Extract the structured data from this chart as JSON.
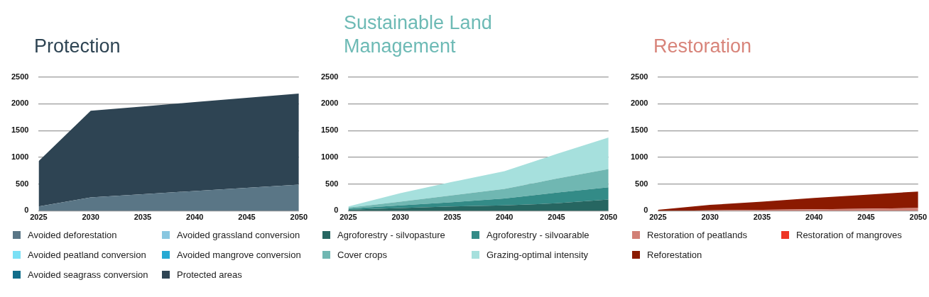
{
  "chart_data": [
    {
      "type": "area",
      "title": "Protection",
      "stacked": true,
      "x": [
        2025,
        2030,
        2035,
        2040,
        2045,
        2050
      ],
      "xlim": [
        2025,
        2050
      ],
      "xticks": [
        2025,
        2030,
        2035,
        2040,
        2045,
        2050
      ],
      "ylim": [
        0,
        2500
      ],
      "yticks": [
        0,
        500,
        1000,
        1500,
        2000,
        2500
      ],
      "grid": "y",
      "legend": "bottom",
      "series": [
        {
          "name": "Avoided deforestation",
          "color": "#5a7686",
          "values": [
            80,
            250,
            310,
            370,
            430,
            490
          ]
        },
        {
          "name": "Avoided grassland conversion",
          "color": "#89c7e0",
          "values": [
            null,
            null,
            null,
            null,
            null,
            null
          ]
        },
        {
          "name": "Avoided peatland conversion",
          "color": "#7ae0f5",
          "values": [
            null,
            null,
            null,
            null,
            null,
            null
          ]
        },
        {
          "name": "Avoided mangrove conversion",
          "color": "#26a9d3",
          "values": [
            null,
            null,
            null,
            null,
            null,
            null
          ]
        },
        {
          "name": "Avoided seagrass conversion",
          "color": "#116d8a",
          "values": [
            null,
            null,
            null,
            null,
            null,
            null
          ]
        },
        {
          "name": "Protected areas",
          "color": "#2e4453",
          "values": [
            850,
            1620,
            1640,
            1660,
            1680,
            1700
          ]
        }
      ]
    },
    {
      "type": "area",
      "title": "Sustainable Land Management",
      "stacked": true,
      "x": [
        2025,
        2030,
        2035,
        2040,
        2045,
        2050
      ],
      "xlim": [
        2025,
        2050
      ],
      "xticks": [
        2025,
        2030,
        2035,
        2040,
        2045,
        2050
      ],
      "ylim": [
        0,
        2500
      ],
      "yticks": [
        0,
        500,
        1000,
        1500,
        2000,
        2500
      ],
      "grid": "y",
      "legend": "bottom",
      "series": [
        {
          "name": "Agroforestry - silvopasture",
          "color": "#266661",
          "values": [
            20,
            50,
            80,
            100,
            140,
            210
          ]
        },
        {
          "name": "Agroforestry - silvoarable",
          "color": "#338b87",
          "values": [
            20,
            50,
            80,
            130,
            200,
            230
          ]
        },
        {
          "name": "Cover crops",
          "color": "#70b7b2",
          "values": [
            20,
            70,
            130,
            180,
            260,
            340
          ]
        },
        {
          "name": "Grazing-optimal intensity",
          "color": "#a6e0dd",
          "values": [
            20,
            160,
            250,
            330,
            460,
            590
          ]
        }
      ]
    },
    {
      "type": "area",
      "title": "Restoration",
      "stacked": true,
      "x": [
        2025,
        2030,
        2035,
        2040,
        2045,
        2050
      ],
      "xlim": [
        2025,
        2050
      ],
      "xticks": [
        2025,
        2030,
        2035,
        2040,
        2045,
        2050
      ],
      "ylim": [
        0,
        2500
      ],
      "yticks": [
        0,
        500,
        1000,
        1500,
        2000,
        2500
      ],
      "grid": "y",
      "legend": "bottom",
      "series": [
        {
          "name": "Restoration of peatlands",
          "color": "#d28076",
          "values": [
            0,
            10,
            20,
            30,
            40,
            50
          ]
        },
        {
          "name": "Restoration of mangroves",
          "color": "#ee3524",
          "values": [
            null,
            null,
            null,
            null,
            null,
            null
          ]
        },
        {
          "name": "Reforestation",
          "color": "#8b1a00",
          "values": [
            20,
            100,
            150,
            210,
            260,
            310
          ]
        }
      ]
    }
  ]
}
